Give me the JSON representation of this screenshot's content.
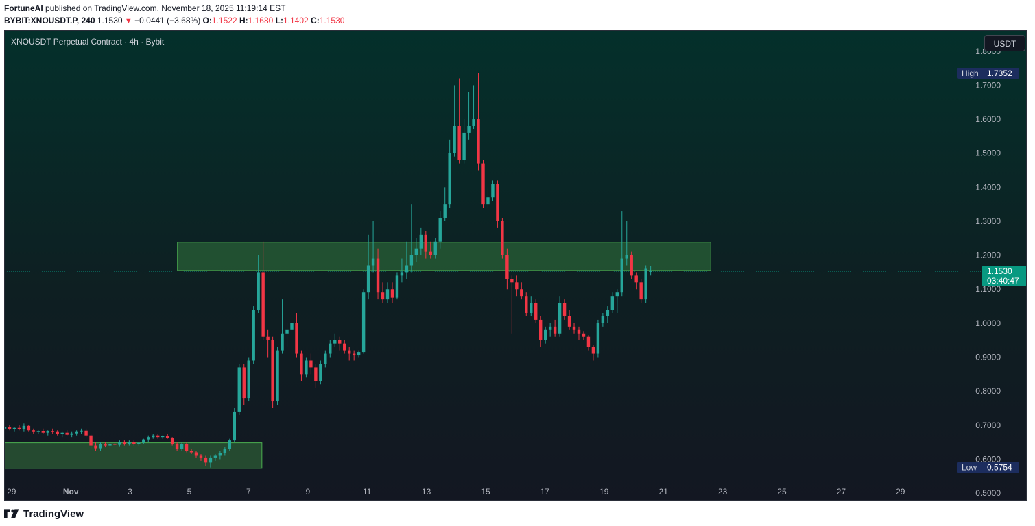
{
  "header": {
    "publisher": "FortuneAI",
    "published_text": "published on TradingView.com, November 18, 2025 11:19:14 EST",
    "symbol": "BYBIT:XNOUSDT.P, 240",
    "last": "1.1530",
    "arrow": "▼",
    "change": "−0.0441 (−3.68%)",
    "o_label": "O:",
    "o_value": "1.1522",
    "h_label": "H:",
    "h_value": "1.1680",
    "l_label": "L:",
    "l_value": "1.1402",
    "c_label": "C:",
    "c_value": "1.1530"
  },
  "chart_title": "XNOUSDT Perpetual Contract · 4h · Bybit",
  "currency_button": "USDT",
  "footer_logo": "TradingView",
  "colors": {
    "up": "#26a69a",
    "down": "#f23645",
    "background": "#131722",
    "zone_fill": "#4caf50",
    "last_price": "#089981",
    "high_low_label": "#1c2d5e"
  },
  "chart_data": {
    "type": "candlestick",
    "timeframe": "4h",
    "ylim": [
      0.48,
      1.86
    ],
    "y_ticks": [
      "1.8000",
      "1.7000",
      "1.6000",
      "1.5000",
      "1.4000",
      "1.3000",
      "1.2000",
      "1.1000",
      "1.0000",
      "0.9000",
      "0.8000",
      "0.7000",
      "0.6000",
      "0.5000"
    ],
    "x_ticks": [
      "29",
      "Nov",
      "3",
      "5",
      "7",
      "9",
      "11",
      "13",
      "15",
      "17",
      "19",
      "21",
      "23",
      "25",
      "27",
      "29"
    ],
    "x_tick_days": [
      -3,
      -1,
      1,
      3,
      5,
      7,
      9,
      11,
      13,
      15,
      17,
      19,
      21,
      23,
      25,
      27
    ],
    "last_price": "1.1530",
    "countdown": "03:40:47",
    "high": {
      "label": "High",
      "value": "1.7352"
    },
    "low": {
      "label": "Low",
      "value": "0.5754"
    },
    "zones": [
      {
        "start_day": 2.6,
        "end_day": 20.6,
        "top": 1.238,
        "bottom": 1.155
      },
      {
        "start_day": -4.3,
        "end_day": 5.45,
        "top": 0.648,
        "bottom": 0.573
      }
    ],
    "candles": [
      [
        0.69,
        0.7,
        0.685,
        0.695
      ],
      [
        0.695,
        0.7,
        0.685,
        0.688
      ],
      [
        0.688,
        0.695,
        0.68,
        0.692
      ],
      [
        0.692,
        0.7,
        0.685,
        0.688
      ],
      [
        0.688,
        0.705,
        0.68,
        0.698
      ],
      [
        0.698,
        0.7,
        0.68,
        0.685
      ],
      [
        0.685,
        0.69,
        0.675,
        0.68
      ],
      [
        0.68,
        0.685,
        0.675,
        0.682
      ],
      [
        0.682,
        0.69,
        0.675,
        0.678
      ],
      [
        0.678,
        0.685,
        0.67,
        0.683
      ],
      [
        0.683,
        0.69,
        0.675,
        0.68
      ],
      [
        0.68,
        0.685,
        0.67,
        0.675
      ],
      [
        0.675,
        0.68,
        0.665,
        0.678
      ],
      [
        0.678,
        0.685,
        0.67,
        0.672
      ],
      [
        0.672,
        0.68,
        0.665,
        0.676
      ],
      [
        0.676,
        0.685,
        0.67,
        0.68
      ],
      [
        0.68,
        0.69,
        0.675,
        0.684
      ],
      [
        0.684,
        0.69,
        0.665,
        0.67
      ],
      [
        0.67,
        0.675,
        0.63,
        0.64
      ],
      [
        0.64,
        0.65,
        0.625,
        0.632
      ],
      [
        0.632,
        0.65,
        0.625,
        0.645
      ],
      [
        0.645,
        0.65,
        0.635,
        0.64
      ],
      [
        0.64,
        0.65,
        0.63,
        0.645
      ],
      [
        0.645,
        0.65,
        0.64,
        0.642
      ],
      [
        0.642,
        0.655,
        0.638,
        0.65
      ],
      [
        0.65,
        0.655,
        0.64,
        0.645
      ],
      [
        0.645,
        0.655,
        0.64,
        0.65
      ],
      [
        0.65,
        0.655,
        0.64,
        0.645
      ],
      [
        0.645,
        0.65,
        0.64,
        0.648
      ],
      [
        0.648,
        0.66,
        0.645,
        0.658
      ],
      [
        0.658,
        0.67,
        0.65,
        0.665
      ],
      [
        0.665,
        0.675,
        0.66,
        0.67
      ],
      [
        0.67,
        0.675,
        0.66,
        0.665
      ],
      [
        0.665,
        0.67,
        0.66,
        0.668
      ],
      [
        0.668,
        0.675,
        0.66,
        0.662
      ],
      [
        0.662,
        0.665,
        0.64,
        0.645
      ],
      [
        0.645,
        0.65,
        0.625,
        0.63
      ],
      [
        0.63,
        0.65,
        0.625,
        0.645
      ],
      [
        0.645,
        0.65,
        0.62,
        0.625
      ],
      [
        0.625,
        0.63,
        0.615,
        0.62
      ],
      [
        0.62,
        0.625,
        0.605,
        0.61
      ],
      [
        0.61,
        0.615,
        0.595,
        0.605
      ],
      [
        0.605,
        0.61,
        0.58,
        0.59
      ],
      [
        0.59,
        0.61,
        0.5754,
        0.605
      ],
      [
        0.605,
        0.615,
        0.595,
        0.61
      ],
      [
        0.61,
        0.625,
        0.6,
        0.618
      ],
      [
        0.618,
        0.635,
        0.61,
        0.63
      ],
      [
        0.63,
        0.66,
        0.625,
        0.655
      ],
      [
        0.655,
        0.75,
        0.65,
        0.74
      ],
      [
        0.74,
        0.88,
        0.73,
        0.87
      ],
      [
        0.87,
        0.88,
        0.76,
        0.78
      ],
      [
        0.78,
        0.9,
        0.77,
        0.89
      ],
      [
        0.89,
        1.05,
        0.88,
        1.04
      ],
      [
        1.04,
        1.2,
        1.03,
        1.15
      ],
      [
        1.15,
        1.24,
        0.95,
        0.96
      ],
      [
        0.96,
        0.98,
        0.9,
        0.95
      ],
      [
        0.95,
        0.96,
        0.75,
        0.77
      ],
      [
        0.77,
        0.93,
        0.76,
        0.92
      ],
      [
        0.92,
        1.07,
        0.91,
        0.97
      ],
      [
        0.97,
        1.0,
        0.93,
        0.98
      ],
      [
        0.98,
        1.02,
        0.96,
        1.0
      ],
      [
        1.0,
        1.03,
        0.9,
        0.91
      ],
      [
        0.91,
        0.92,
        0.83,
        0.85
      ],
      [
        0.85,
        0.9,
        0.84,
        0.89
      ],
      [
        0.89,
        0.91,
        0.85,
        0.87
      ],
      [
        0.87,
        0.88,
        0.81,
        0.83
      ],
      [
        0.83,
        0.89,
        0.82,
        0.88
      ],
      [
        0.88,
        0.92,
        0.87,
        0.91
      ],
      [
        0.91,
        0.95,
        0.9,
        0.94
      ],
      [
        0.94,
        0.97,
        0.93,
        0.95
      ],
      [
        0.95,
        0.96,
        0.92,
        0.94
      ],
      [
        0.94,
        0.95,
        0.91,
        0.92
      ],
      [
        0.92,
        0.93,
        0.89,
        0.91
      ],
      [
        0.91,
        0.92,
        0.89,
        0.905
      ],
      [
        0.905,
        0.92,
        0.9,
        0.915
      ],
      [
        0.915,
        1.1,
        0.91,
        1.09
      ],
      [
        1.09,
        1.26,
        1.07,
        1.17
      ],
      [
        1.17,
        1.3,
        1.15,
        1.19
      ],
      [
        1.19,
        1.22,
        1.07,
        1.09
      ],
      [
        1.09,
        1.12,
        1.06,
        1.07
      ],
      [
        1.07,
        1.12,
        1.06,
        1.1
      ],
      [
        1.1,
        1.12,
        1.06,
        1.075
      ],
      [
        1.075,
        1.15,
        1.07,
        1.14
      ],
      [
        1.14,
        1.19,
        1.12,
        1.15
      ],
      [
        1.15,
        1.24,
        1.13,
        1.17
      ],
      [
        1.17,
        1.35,
        1.15,
        1.2
      ],
      [
        1.2,
        1.25,
        1.18,
        1.22
      ],
      [
        1.22,
        1.28,
        1.2,
        1.26
      ],
      [
        1.26,
        1.27,
        1.19,
        1.21
      ],
      [
        1.21,
        1.24,
        1.19,
        1.2
      ],
      [
        1.2,
        1.25,
        1.19,
        1.24
      ],
      [
        1.24,
        1.33,
        1.22,
        1.31
      ],
      [
        1.31,
        1.4,
        1.3,
        1.35
      ],
      [
        1.35,
        1.54,
        1.34,
        1.5
      ],
      [
        1.5,
        1.7,
        1.49,
        1.58
      ],
      [
        1.58,
        1.72,
        1.47,
        1.48
      ],
      [
        1.48,
        1.6,
        1.47,
        1.56
      ],
      [
        1.56,
        1.68,
        1.54,
        1.58
      ],
      [
        1.58,
        1.7,
        1.57,
        1.6
      ],
      [
        1.6,
        1.7352,
        1.45,
        1.47
      ],
      [
        1.47,
        1.48,
        1.34,
        1.35
      ],
      [
        1.35,
        1.4,
        1.34,
        1.37
      ],
      [
        1.37,
        1.42,
        1.36,
        1.41
      ],
      [
        1.41,
        1.42,
        1.28,
        1.3
      ],
      [
        1.3,
        1.31,
        1.19,
        1.2
      ],
      [
        1.2,
        1.22,
        1.1,
        1.13
      ],
      [
        1.13,
        1.14,
        0.97,
        1.12
      ],
      [
        1.12,
        1.14,
        1.08,
        1.1
      ],
      [
        1.1,
        1.12,
        1.07,
        1.08
      ],
      [
        1.08,
        1.09,
        1.02,
        1.03
      ],
      [
        1.03,
        1.08,
        1.02,
        1.06
      ],
      [
        1.06,
        1.07,
        1.0,
        1.01
      ],
      [
        1.01,
        1.02,
        0.93,
        0.95
      ],
      [
        0.95,
        0.99,
        0.94,
        0.98
      ],
      [
        0.98,
        1.0,
        0.96,
        0.99
      ],
      [
        0.99,
        1.01,
        0.96,
        0.97
      ],
      [
        0.97,
        1.08,
        0.96,
        1.06
      ],
      [
        1.06,
        1.07,
        1.01,
        1.02
      ],
      [
        1.02,
        1.04,
        0.98,
        0.99
      ],
      [
        0.99,
        1.0,
        0.97,
        0.98
      ],
      [
        0.98,
        0.99,
        0.95,
        0.97
      ],
      [
        0.97,
        0.975,
        0.95,
        0.96
      ],
      [
        0.96,
        0.965,
        0.92,
        0.93
      ],
      [
        0.93,
        0.935,
        0.89,
        0.91
      ],
      [
        0.91,
        1.01,
        0.9,
        1.0
      ],
      [
        1.0,
        1.03,
        0.99,
        1.02
      ],
      [
        1.02,
        1.05,
        1.0,
        1.04
      ],
      [
        1.04,
        1.09,
        1.03,
        1.08
      ],
      [
        1.08,
        1.1,
        1.03,
        1.09
      ],
      [
        1.09,
        1.33,
        1.08,
        1.19
      ],
      [
        1.19,
        1.3,
        1.17,
        1.2
      ],
      [
        1.2,
        1.21,
        1.13,
        1.14
      ],
      [
        1.14,
        1.15,
        1.1,
        1.12
      ],
      [
        1.12,
        1.13,
        1.06,
        1.07
      ],
      [
        1.07,
        1.17,
        1.06,
        1.16
      ],
      [
        1.1522,
        1.168,
        1.1402,
        1.153
      ]
    ]
  }
}
